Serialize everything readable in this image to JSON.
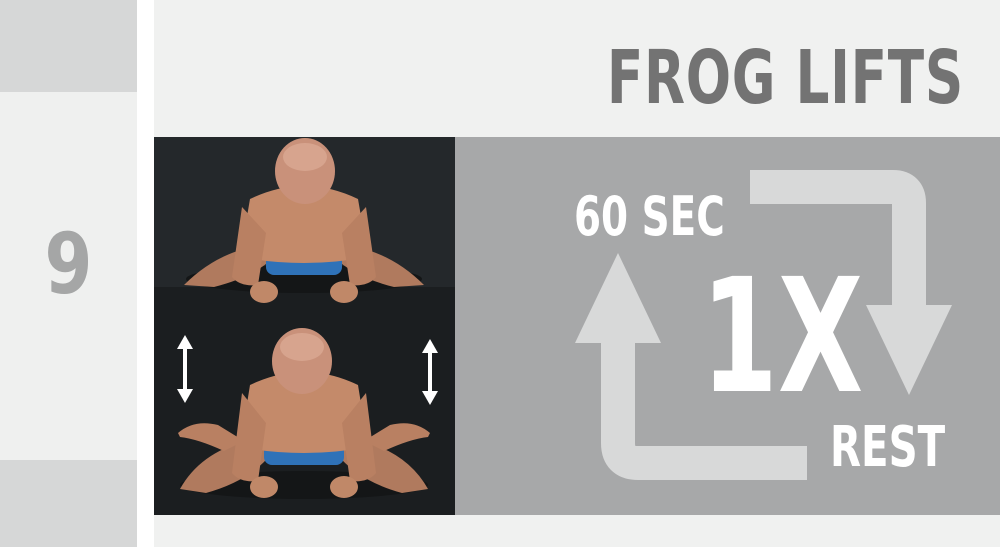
{
  "exercise": {
    "step_number": "9",
    "title": "FROG LIFTS"
  },
  "routine": {
    "duration_label": "60 SEC",
    "repeat_label": "1X",
    "rest_label": "REST"
  },
  "colors": {
    "background": "#f0f1f0",
    "side_accent": "#d6d7d7",
    "title_text": "#737373",
    "number_text": "#a5a6a6",
    "panel": "#a7a8a9",
    "arrow": "#d8d9d9",
    "label_text": "#ffffff",
    "photo_background": "#1f2326"
  },
  "icons": [
    "cycle-arrows-icon",
    "up-down-arrow-icon"
  ]
}
